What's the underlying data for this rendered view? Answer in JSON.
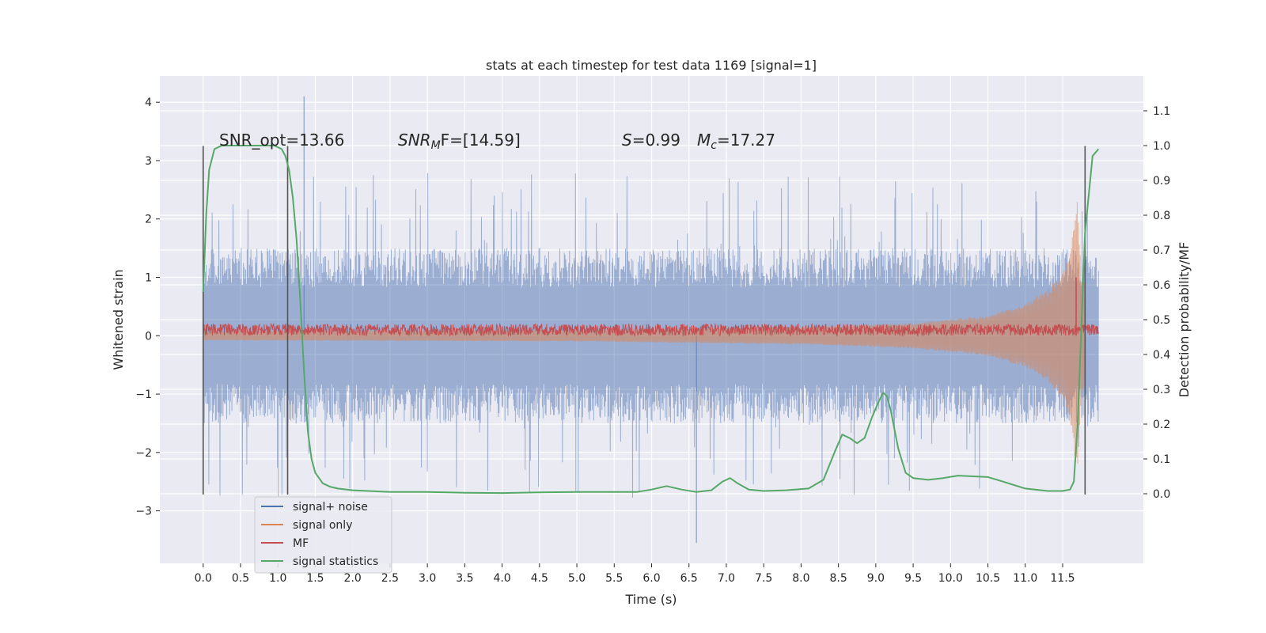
{
  "chart_data": {
    "type": "line",
    "title": "stats at each timestep for test data 1169 [signal=1]",
    "xlabel": "Time (s)",
    "ylabel_left": "Whitened strain",
    "ylabel_right": "Detection probability/MF",
    "xlim": [
      -0.58,
      12.58
    ],
    "ylim_left": [
      -3.9,
      4.45
    ],
    "ylim_right": [
      -0.2,
      1.2
    ],
    "x_ticks": [
      "0.0",
      "0.5",
      "1.0",
      "1.5",
      "2.0",
      "2.5",
      "3.0",
      "3.5",
      "4.0",
      "4.5",
      "5.0",
      "5.5",
      "6.0",
      "6.5",
      "7.0",
      "7.5",
      "8.0",
      "8.5",
      "9.0",
      "9.5",
      "10.0",
      "10.5",
      "11.0",
      "11.5"
    ],
    "y_left_ticks": [
      "4",
      "3",
      "2",
      "1",
      "0",
      "−1",
      "−2",
      "−3"
    ],
    "y_right_ticks": [
      "1.1",
      "1.0",
      "0.9",
      "0.8",
      "0.7",
      "0.6",
      "0.5",
      "0.4",
      "0.3",
      "0.2",
      "0.1",
      "0.0"
    ],
    "grid": true,
    "legend_position": "lower-left",
    "annotations": {
      "snr_opt": "SNR_opt=13.66",
      "snr_mf_main": "SNR",
      "snr_mf_sub": "M",
      "snr_mf_rest": "F=[14.59]",
      "s_var": "S",
      "s_val": "=0.99",
      "mc_var": "M",
      "mc_sub": "c",
      "mc_val": "=17.27"
    },
    "vlines_x": [
      0.0,
      1.13,
      11.8
    ],
    "series": [
      {
        "name": "signal+ noise",
        "color": "#4c72b0",
        "axis": "left",
        "x_range": [
          0.0,
          11.98
        ],
        "typical_band": [
          -1.5,
          1.5
        ],
        "peak_max": 4.1,
        "peak_min": -3.55
      },
      {
        "name": "signal only",
        "color": "#dd8452",
        "axis": "left",
        "x_range": [
          0.0,
          11.8
        ],
        "envelope": [
          [
            0.0,
            0.08
          ],
          [
            5.0,
            0.1
          ],
          [
            8.0,
            0.15
          ],
          [
            9.5,
            0.22
          ],
          [
            10.5,
            0.35
          ],
          [
            11.0,
            0.55
          ],
          [
            11.3,
            0.8
          ],
          [
            11.5,
            1.1
          ],
          [
            11.6,
            1.5
          ],
          [
            11.65,
            2.0
          ],
          [
            11.7,
            2.4
          ],
          [
            11.75,
            1.0
          ]
        ]
      },
      {
        "name": "MF",
        "color": "#c44e52",
        "axis": "left",
        "x_range": [
          0.0,
          11.98
        ],
        "band": [
          0.0,
          0.2
        ],
        "spike": {
          "x": 11.68,
          "y": 1.0
        }
      },
      {
        "name": "signal statistics",
        "color": "#55a868",
        "axis": "right",
        "x": [
          0.0,
          0.04,
          0.08,
          0.15,
          0.25,
          0.4,
          0.6,
          0.8,
          0.95,
          1.05,
          1.1,
          1.15,
          1.2,
          1.25,
          1.3,
          1.35,
          1.4,
          1.45,
          1.5,
          1.6,
          1.7,
          1.8,
          2.0,
          2.5,
          3.0,
          3.5,
          4.0,
          4.5,
          5.0,
          5.5,
          5.8,
          6.0,
          6.2,
          6.4,
          6.6,
          6.8,
          6.95,
          7.05,
          7.15,
          7.3,
          7.5,
          7.8,
          8.1,
          8.3,
          8.45,
          8.55,
          8.65,
          8.75,
          8.85,
          8.95,
          9.05,
          9.1,
          9.15,
          9.2,
          9.3,
          9.4,
          9.5,
          9.7,
          9.9,
          10.1,
          10.3,
          10.5,
          10.7,
          11.0,
          11.3,
          11.5,
          11.6,
          11.65,
          11.7,
          11.8,
          11.9,
          11.98
        ],
        "values": [
          0.58,
          0.8,
          0.93,
          0.99,
          1.0,
          1.0,
          1.0,
          1.0,
          1.0,
          0.99,
          0.97,
          0.93,
          0.85,
          0.73,
          0.55,
          0.35,
          0.18,
          0.1,
          0.06,
          0.03,
          0.02,
          0.015,
          0.01,
          0.005,
          0.005,
          0.003,
          0.002,
          0.004,
          0.005,
          0.005,
          0.005,
          0.012,
          0.022,
          0.012,
          0.005,
          0.01,
          0.035,
          0.045,
          0.03,
          0.012,
          0.008,
          0.01,
          0.015,
          0.04,
          0.12,
          0.17,
          0.16,
          0.145,
          0.16,
          0.22,
          0.27,
          0.29,
          0.28,
          0.24,
          0.13,
          0.06,
          0.045,
          0.04,
          0.045,
          0.052,
          0.05,
          0.048,
          0.035,
          0.015,
          0.008,
          0.008,
          0.012,
          0.035,
          0.2,
          0.75,
          0.97,
          0.99
        ]
      }
    ]
  }
}
